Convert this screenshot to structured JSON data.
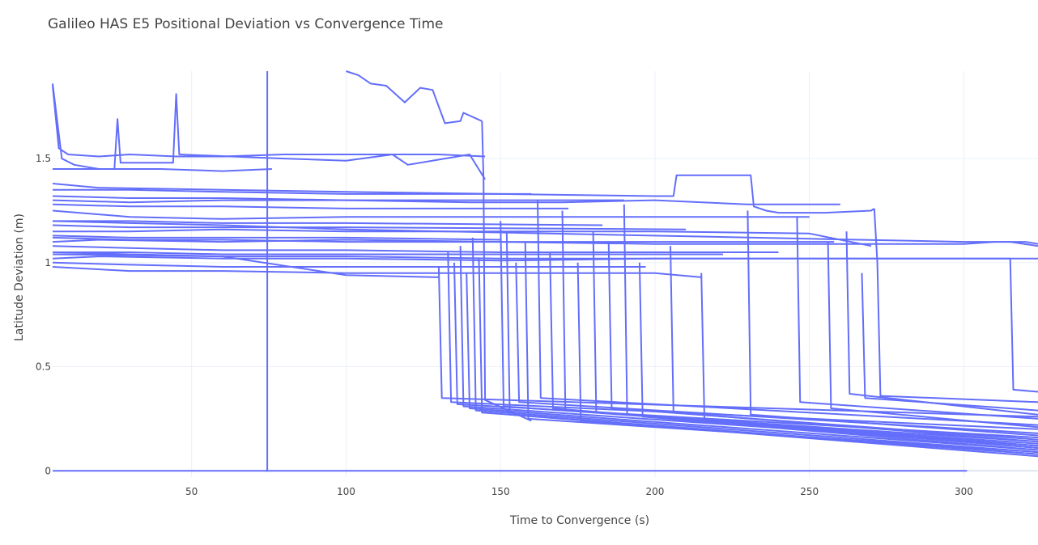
{
  "chart_data": {
    "type": "line",
    "title": "Galileo HAS E5 Positional Deviation vs Convergence Time",
    "xlabel": "Time to Convergence (s)",
    "ylabel": "Latitude Deviation (m)",
    "xlim": [
      5,
      324
    ],
    "ylim": [
      -0.03,
      1.92
    ],
    "x_ticks": [
      50,
      100,
      150,
      200,
      250,
      300
    ],
    "y_ticks": [
      0,
      0.5,
      1,
      1.5
    ],
    "y_tick_labels": [
      "0",
      "0.5",
      "1",
      "1.5"
    ],
    "grid": true,
    "line_color": "#636efa",
    "series_note": "many traces rendered in a single color, no legend",
    "series": [
      {
        "x": [
          5,
          75,
          301
        ],
        "y": [
          0,
          0,
          0
        ]
      },
      {
        "x": [
          74,
          74.5,
          74.5
        ],
        "y": [
          0,
          0,
          1.92
        ]
      },
      {
        "x": [
          5,
          8,
          12,
          20,
          40,
          60,
          76
        ],
        "y": [
          1.86,
          1.5,
          1.47,
          1.45,
          1.45,
          1.44,
          1.45
        ]
      },
      {
        "x": [
          5,
          7,
          10,
          20,
          30,
          45,
          46,
          60,
          80,
          110,
          130,
          145
        ],
        "y": [
          1.85,
          1.55,
          1.52,
          1.51,
          1.52,
          1.51,
          1.51,
          1.51,
          1.52,
          1.52,
          1.52,
          1.51
        ]
      },
      {
        "x": [
          5,
          25,
          26,
          27,
          40,
          44,
          45,
          46,
          80,
          100,
          115,
          120,
          140,
          145
        ],
        "y": [
          1.45,
          1.45,
          1.69,
          1.48,
          1.48,
          1.48,
          1.81,
          1.52,
          1.5,
          1.49,
          1.52,
          1.47,
          1.52,
          1.4
        ]
      },
      {
        "x": [
          100,
          104,
          108,
          113,
          119,
          124,
          128,
          132,
          137,
          138,
          144
        ],
        "y": [
          1.92,
          1.9,
          1.86,
          1.85,
          1.77,
          1.84,
          1.83,
          1.67,
          1.68,
          1.72,
          1.68
        ]
      },
      {
        "x": [
          144,
          144.5,
          145,
          160
        ],
        "y": [
          1.68,
          1.4,
          0.34,
          0.24
        ]
      },
      {
        "x": [
          5,
          20,
          60,
          100,
          150,
          200,
          206,
          207,
          210,
          225,
          231,
          232,
          236,
          240,
          255,
          270,
          271
        ],
        "y": [
          1.38,
          1.36,
          1.35,
          1.34,
          1.33,
          1.32,
          1.32,
          1.42,
          1.42,
          1.42,
          1.42,
          1.27,
          1.25,
          1.24,
          1.24,
          1.25,
          1.26
        ]
      },
      {
        "x": [
          271,
          272,
          273,
          324
        ],
        "y": [
          1.26,
          1.0,
          0.36,
          0.33
        ]
      },
      {
        "x": [
          5,
          20,
          60,
          100,
          150,
          200,
          250,
          300,
          310,
          320,
          324
        ],
        "y": [
          1.1,
          1.11,
          1.1,
          1.11,
          1.1,
          1.09,
          1.09,
          1.09,
          1.1,
          1.1,
          1.09
        ]
      },
      {
        "x": [
          5,
          20,
          60,
          100,
          150,
          200,
          250,
          300,
          324
        ],
        "y": [
          1.02,
          1.03,
          1.02,
          1.02,
          1.01,
          1.02,
          1.02,
          1.02,
          1.02
        ]
      },
      {
        "x": [
          5,
          30,
          60,
          100,
          140,
          170,
          200,
          230,
          260
        ],
        "y": [
          1.3,
          1.29,
          1.3,
          1.3,
          1.29,
          1.29,
          1.3,
          1.28,
          1.28
        ]
      },
      {
        "x": [
          5,
          30,
          60,
          100,
          150,
          200,
          250
        ],
        "y": [
          1.25,
          1.22,
          1.21,
          1.22,
          1.22,
          1.22,
          1.22
        ]
      },
      {
        "x": [
          5,
          30,
          60,
          100,
          150,
          200,
          250,
          270
        ],
        "y": [
          1.15,
          1.15,
          1.16,
          1.15,
          1.15,
          1.15,
          1.14,
          1.08
        ]
      },
      {
        "x": [
          5,
          30,
          60,
          100,
          150,
          200,
          240
        ],
        "y": [
          1.08,
          1.07,
          1.06,
          1.06,
          1.05,
          1.05,
          1.05
        ]
      },
      {
        "x": [
          5,
          30,
          60,
          100,
          150,
          200,
          215
        ],
        "y": [
          0.98,
          0.96,
          0.96,
          0.95,
          0.95,
          0.95,
          0.93
        ]
      },
      {
        "x": [
          5,
          30,
          60,
          100,
          130
        ],
        "y": [
          1.05,
          1.04,
          1.03,
          0.94,
          0.93
        ]
      },
      {
        "x": [
          5,
          30,
          60,
          100,
          150
        ],
        "y": [
          1.13,
          1.12,
          1.12,
          1.12,
          1.11
        ]
      },
      {
        "x": [
          5,
          30,
          60,
          100,
          150,
          190
        ],
        "y": [
          1.32,
          1.31,
          1.31,
          1.3,
          1.3,
          1.3
        ]
      },
      {
        "x": [
          5,
          30,
          60,
          100,
          160
        ],
        "y": [
          1.35,
          1.35,
          1.34,
          1.33,
          1.33
        ]
      },
      {
        "x": [
          5,
          30,
          60,
          100,
          172
        ],
        "y": [
          1.28,
          1.27,
          1.27,
          1.26,
          1.26
        ]
      },
      {
        "x": [
          5,
          30,
          60,
          100,
          183
        ],
        "y": [
          1.2,
          1.2,
          1.19,
          1.19,
          1.18
        ]
      },
      {
        "x": [
          5,
          30,
          60,
          100,
          197
        ],
        "y": [
          1.0,
          0.99,
          0.98,
          0.98,
          0.98
        ]
      },
      {
        "x": [
          5,
          30,
          60,
          100,
          210
        ],
        "y": [
          1.18,
          1.17,
          1.17,
          1.17,
          1.16
        ]
      },
      {
        "x": [
          5,
          30,
          60,
          100,
          222
        ],
        "y": [
          1.05,
          1.05,
          1.04,
          1.04,
          1.04
        ]
      },
      {
        "x": [
          5,
          30,
          60,
          100,
          258
        ],
        "y": [
          1.12,
          1.11,
          1.11,
          1.1,
          1.1
        ]
      },
      {
        "x": [
          5,
          30,
          60,
          100,
          300,
          315,
          324
        ],
        "y": [
          1.2,
          1.19,
          1.18,
          1.16,
          1.1,
          1.1,
          1.08
        ]
      },
      {
        "x": [
          130,
          131,
          324
        ],
        "y": [
          0.98,
          0.35,
          0.26
        ]
      },
      {
        "x": [
          133,
          134,
          324
        ],
        "y": [
          1.05,
          0.33,
          0.2
        ]
      },
      {
        "x": [
          135,
          136,
          324
        ],
        "y": [
          1.0,
          0.32,
          0.16
        ]
      },
      {
        "x": [
          137,
          138,
          324
        ],
        "y": [
          1.08,
          0.31,
          0.12
        ]
      },
      {
        "x": [
          139,
          140,
          324
        ],
        "y": [
          0.95,
          0.3,
          0.1
        ]
      },
      {
        "x": [
          141,
          142,
          324
        ],
        "y": [
          1.12,
          0.29,
          0.09
        ]
      },
      {
        "x": [
          143,
          144,
          324
        ],
        "y": [
          1.02,
          0.28,
          0.08
        ]
      },
      {
        "x": [
          150,
          151,
          324
        ],
        "y": [
          1.2,
          0.31,
          0.13
        ]
      },
      {
        "x": [
          152,
          153,
          324
        ],
        "y": [
          1.15,
          0.27,
          0.07
        ]
      },
      {
        "x": [
          155,
          156,
          324
        ],
        "y": [
          1.0,
          0.33,
          0.18
        ]
      },
      {
        "x": [
          158,
          159,
          324
        ],
        "y": [
          1.1,
          0.25,
          0.09
        ]
      },
      {
        "x": [
          162,
          163,
          324
        ],
        "y": [
          1.3,
          0.35,
          0.22
        ]
      },
      {
        "x": [
          166,
          167,
          324
        ],
        "y": [
          1.05,
          0.3,
          0.11
        ]
      },
      {
        "x": [
          170,
          171,
          324
        ],
        "y": [
          1.25,
          0.29,
          0.14
        ]
      },
      {
        "x": [
          175,
          176,
          324
        ],
        "y": [
          1.0,
          0.24,
          0.08
        ]
      },
      {
        "x": [
          180,
          181,
          324
        ],
        "y": [
          1.15,
          0.28,
          0.12
        ]
      },
      {
        "x": [
          185,
          186,
          324
        ],
        "y": [
          1.1,
          0.3,
          0.15
        ]
      },
      {
        "x": [
          190,
          191,
          324
        ],
        "y": [
          1.28,
          0.27,
          0.11
        ]
      },
      {
        "x": [
          195,
          196,
          324
        ],
        "y": [
          1.0,
          0.26,
          0.1
        ]
      },
      {
        "x": [
          205,
          206,
          324
        ],
        "y": [
          1.08,
          0.28,
          0.14
        ]
      },
      {
        "x": [
          215,
          216,
          324
        ],
        "y": [
          0.95,
          0.25,
          0.12
        ]
      },
      {
        "x": [
          230,
          231,
          324
        ],
        "y": [
          1.25,
          0.27,
          0.17
        ]
      },
      {
        "x": [
          246,
          247,
          324
        ],
        "y": [
          1.22,
          0.33,
          0.25
        ]
      },
      {
        "x": [
          256,
          257,
          324
        ],
        "y": [
          1.1,
          0.3,
          0.21
        ]
      },
      {
        "x": [
          262,
          263,
          324
        ],
        "y": [
          1.15,
          0.37,
          0.27
        ]
      },
      {
        "x": [
          267,
          268,
          324
        ],
        "y": [
          0.95,
          0.35,
          0.29
        ]
      },
      {
        "x": [
          5,
          60,
          100,
          150,
          200,
          250,
          300,
          315,
          316,
          324
        ],
        "y": [
          1.04,
          1.03,
          1.03,
          1.02,
          1.02,
          1.02,
          1.02,
          1.02,
          0.39,
          0.38
        ]
      }
    ]
  }
}
